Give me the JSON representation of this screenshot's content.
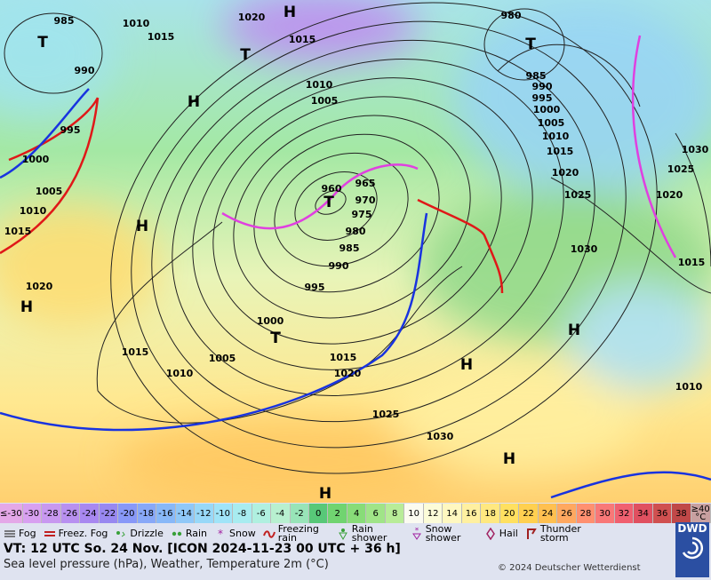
{
  "map": {
    "isobar_labels": [
      "985",
      "1010",
      "1015",
      "1020",
      "1015",
      "990",
      "995",
      "1000",
      "1005",
      "1010",
      "1015",
      "1020",
      "1010",
      "1005",
      "960",
      "965",
      "970",
      "975",
      "980",
      "985",
      "990",
      "995",
      "1000",
      "1005",
      "1015",
      "1010",
      "1015",
      "1020",
      "1025",
      "1030",
      "980",
      "985",
      "990",
      "995",
      "1000",
      "1005",
      "1010",
      "1015",
      "1020",
      "1025",
      "1030",
      "1030",
      "1025",
      "1020",
      "1015",
      "1010"
    ],
    "pressure_centers": [
      "H",
      "T",
      "T",
      "H",
      "H",
      "H",
      "T",
      "T",
      "H",
      "H",
      "H",
      "H",
      "T"
    ]
  },
  "temperature_scale": {
    "labels": [
      "≤-30",
      "-30",
      "-28",
      "-26",
      "-24",
      "-22",
      "-20",
      "-18",
      "-16",
      "-14",
      "-12",
      "-10",
      "-8",
      "-6",
      "-4",
      "-2",
      "0",
      "2",
      "4",
      "6",
      "8",
      "10",
      "12",
      "14",
      "16",
      "18",
      "20",
      "22",
      "24",
      "26",
      "28",
      "30",
      "32",
      "34",
      "36",
      "38",
      "≥40 °C"
    ],
    "colors": [
      "#e4a8e8",
      "#d8a0f0",
      "#c898f0",
      "#b890f0",
      "#a888f0",
      "#9888f0",
      "#8898f8",
      "#88a8f8",
      "#88b8f8",
      "#90c8f8",
      "#98d8f8",
      "#a0e4f8",
      "#a8ecf0",
      "#b0f0e0",
      "#b8f0d0",
      "#98e4b8",
      "#58c878",
      "#70d470",
      "#88dc78",
      "#a0e488",
      "#b8ec98",
      "#fbfbf0",
      "#fcfcd8",
      "#fff8c0",
      "#fff0a0",
      "#ffe880",
      "#ffe060",
      "#ffd050",
      "#ffc050",
      "#ffa860",
      "#ff9070",
      "#f87878",
      "#f06070",
      "#e05060",
      "#d05050",
      "#c04848",
      "#c8a0a0"
    ]
  },
  "weather_legend": [
    "Fog",
    "Freez. Fog",
    "Drizzle",
    "Rain",
    "Snow",
    "Freezing rain",
    "Rain shower",
    "Snow shower",
    "Hail",
    "Thunder storm"
  ],
  "footer": {
    "valid_time": "VT: 12 UTC So.  24 Nov. [ICON 2024-11-23  00 UTC + 36 h]",
    "description": "Sea level pressure (hPa), Weather, Temperature 2m (°C)",
    "copyright": "© 2024 Deutscher Wetterdienst",
    "logo": "DWD"
  }
}
